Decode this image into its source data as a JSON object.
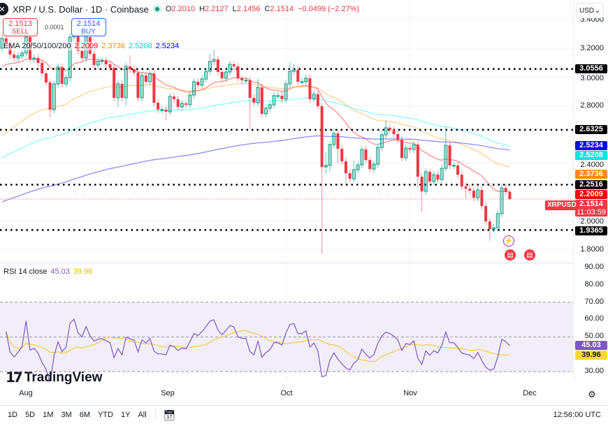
{
  "header": {
    "title": "XRP / U.S. Dollar · 1D · Coinbase",
    "o_label": "O",
    "o": "2.2010",
    "h_label": "H",
    "h": "2.2127",
    "l_label": "L",
    "l": "2.1456",
    "c_label": "C",
    "c": "2.1514",
    "change": "−0.0499 (−2.27%)"
  },
  "trade": {
    "sell_price": "2.1513",
    "sell_label": "SELL",
    "spread": "0.0001",
    "buy_price": "2.1514",
    "buy_label": "BUY"
  },
  "ema_legend": {
    "label": "EMA 20/50/100/200",
    "v20": "2.2009",
    "v50": "2.3736",
    "v100": "2.5208",
    "v200": "2.5234"
  },
  "currency": "USD",
  "price_ticks": [
    {
      "v": 3.4,
      "t": "3.4000"
    },
    {
      "v": 3.2,
      "t": "3.2000"
    },
    {
      "v": 3.0,
      "t": "3.0000"
    },
    {
      "v": 2.8,
      "t": "2.8000"
    },
    {
      "v": 2.4,
      "t": "2.4000"
    },
    {
      "v": 2.0,
      "t": "2.0000"
    },
    {
      "v": 1.8,
      "t": "1.8000"
    }
  ],
  "levels": [
    {
      "v": 3.0556,
      "t": "3.0556"
    },
    {
      "v": 2.6325,
      "t": "2.6325"
    },
    {
      "v": 2.2516,
      "t": "2.2516"
    },
    {
      "v": 1.9365,
      "t": "1.9365"
    }
  ],
  "ema_labels": [
    {
      "v": 2.5234,
      "t": "2.5234",
      "color": "#0000ff"
    },
    {
      "v": 2.5208,
      "t": "2.5208",
      "color": "#00e5e5"
    },
    {
      "v": 2.3736,
      "t": "2.3736",
      "color": "#ff8c00"
    },
    {
      "v": 2.2009,
      "t": "2.2009",
      "color": "#ff0000"
    }
  ],
  "last_price": {
    "symbol": "XRPUSD",
    "price": "2.1514",
    "countdown": "11:03:59",
    "value": 2.1514,
    "color": "#f23645"
  },
  "rsi": {
    "label": "RSI 14 close",
    "value": "45.03",
    "ma": "39.96",
    "ticks": [
      "90.00",
      "80.00",
      "70.00",
      "60.00",
      "50.00",
      "40.00",
      "30.00"
    ],
    "bands": [
      70,
      50,
      30
    ],
    "color": "#7e57c2",
    "ma_color": "#f5c518"
  },
  "time_axis": [
    {
      "label": "Aug"
    },
    {
      "label": "Sep"
    },
    {
      "label": "Oct"
    },
    {
      "label": "Nov"
    },
    {
      "label": "Dec"
    }
  ],
  "range_buttons": [
    "1D",
    "5D",
    "1M",
    "3M",
    "6M",
    "YTD",
    "1Y",
    "All"
  ],
  "clock": "12:56:00 UTC",
  "logo": "TradingView",
  "colors": {
    "up": "#089981",
    "down": "#f23645",
    "ema20": "#ff0000",
    "ema50": "#ff9800",
    "ema100": "#00ffff",
    "ema200": "#0000ff"
  },
  "chart_data": {
    "type": "candlestick",
    "symbol": "XRPUSD",
    "timeframe": "1D",
    "ylim": [
      1.75,
      3.45
    ],
    "indicators": {
      "ema": {
        "periods": [
          20,
          50,
          100,
          200
        ],
        "last": [
          2.2009,
          2.3736,
          2.5208,
          2.5234
        ]
      },
      "rsi": {
        "period": 14,
        "last": 45.03,
        "ma_last": 39.96,
        "ylim": [
          20,
          95
        ]
      }
    },
    "columns": [
      "date",
      "open",
      "high",
      "low",
      "close"
    ],
    "candles": [
      [
        "Jul 22",
        3.2,
        3.293,
        3.175,
        3.268
      ],
      [
        "Jul 23",
        3.268,
        3.293,
        3.209,
        3.234
      ],
      [
        "Jul 24",
        3.234,
        3.259,
        3.131,
        3.156
      ],
      [
        "Jul 25",
        3.156,
        3.181,
        3.107,
        3.132
      ],
      [
        "Jul 26",
        3.132,
        3.172,
        3.107,
        3.147
      ],
      [
        "Jul 27",
        3.147,
        3.191,
        3.122,
        3.166
      ],
      [
        "Jul 28",
        3.166,
        3.303,
        3.141,
        3.278
      ],
      [
        "Jul 29",
        3.278,
        3.303,
        3.097,
        3.122
      ],
      [
        "Jul 30",
        3.122,
        3.157,
        3.097,
        3.132
      ],
      [
        "Jul 31",
        3.132,
        3.157,
        3.073,
        3.098
      ],
      [
        "Aug 1",
        3.098,
        3.123,
        3.0,
        3.025
      ],
      [
        "Aug 2",
        3.025,
        3.05,
        2.937,
        2.962
      ],
      [
        "Aug 3",
        2.962,
        2.987,
        2.72,
        2.773
      ],
      [
        "Aug 4",
        2.773,
        2.977,
        2.748,
        2.952
      ],
      [
        "Aug 5",
        2.952,
        3.094,
        2.927,
        3.069
      ],
      [
        "Aug 6",
        3.069,
        3.094,
        2.927,
        2.952
      ],
      [
        "Aug 7",
        2.952,
        3.021,
        2.927,
        2.996
      ],
      [
        "Aug 8",
        2.996,
        3.303,
        2.971,
        3.278
      ],
      [
        "Aug 9",
        3.278,
        3.4,
        3.253,
        3.341
      ],
      [
        "Aug 10",
        3.341,
        3.366,
        3.156,
        3.181
      ],
      [
        "Aug 11",
        3.181,
        3.206,
        3.107,
        3.132
      ],
      [
        "Aug 12",
        3.132,
        3.303,
        3.107,
        3.278
      ],
      [
        "Aug 13",
        3.278,
        3.303,
        3.136,
        3.161
      ],
      [
        "Aug 14",
        3.161,
        3.186,
        3.058,
        3.083
      ],
      [
        "Aug 15",
        3.083,
        3.133,
        3.058,
        3.108
      ],
      [
        "Aug 16",
        3.108,
        3.138,
        3.083,
        3.113
      ],
      [
        "Aug 17",
        3.113,
        3.138,
        3.063,
        3.088
      ],
      [
        "Aug 18",
        3.088,
        3.113,
        3.039,
        3.064
      ],
      [
        "Aug 19",
        3.064,
        3.089,
        2.83,
        2.855
      ],
      [
        "Aug 20",
        2.855,
        2.977,
        2.79,
        2.952
      ],
      [
        "Aug 21",
        2.952,
        2.977,
        2.83,
        2.855
      ],
      [
        "Aug 22",
        2.855,
        3.099,
        2.8,
        3.074
      ],
      [
        "Aug 23",
        3.074,
        3.15,
        3.029,
        3.054
      ],
      [
        "Aug 24",
        3.054,
        3.079,
        3.005,
        3.03
      ],
      [
        "Aug 25",
        3.03,
        3.055,
        2.83,
        2.855
      ],
      [
        "Aug 26",
        2.855,
        3.036,
        2.83,
        3.011
      ],
      [
        "Aug 27",
        3.011,
        3.036,
        2.942,
        2.967
      ],
      [
        "Aug 28",
        2.967,
        3.05,
        2.942,
        3.025
      ],
      [
        "Aug 29",
        3.025,
        3.05,
        2.796,
        2.821
      ],
      [
        "Aug 30",
        2.821,
        2.846,
        2.748,
        2.773
      ],
      [
        "Aug 31",
        2.773,
        2.798,
        2.748,
        2.773
      ],
      [
        "Sep 1",
        2.773,
        2.798,
        2.7,
        2.758
      ],
      [
        "Sep 2",
        2.758,
        2.89,
        2.733,
        2.865
      ],
      [
        "Sep 3",
        2.865,
        2.89,
        2.821,
        2.846
      ],
      [
        "Sep 4",
        2.846,
        2.871,
        2.767,
        2.792
      ],
      [
        "Sep 5",
        2.792,
        2.842,
        2.767,
        2.817
      ],
      [
        "Sep 6",
        2.817,
        2.842,
        2.782,
        2.807
      ],
      [
        "Sep 7",
        2.807,
        2.9,
        2.782,
        2.875
      ],
      [
        "Sep 8",
        2.875,
        2.992,
        2.85,
        2.967
      ],
      [
        "Sep 9",
        2.967,
        2.992,
        2.918,
        2.943
      ],
      [
        "Sep 10",
        2.943,
        3.011,
        2.918,
        2.986
      ],
      [
        "Sep 11",
        2.986,
        3.065,
        2.961,
        3.04
      ],
      [
        "Sep 12",
        3.04,
        3.16,
        3.015,
        3.108
      ],
      [
        "Sep 13",
        3.108,
        3.19,
        3.083,
        3.122
      ],
      [
        "Sep 14",
        3.122,
        3.147,
        3.01,
        3.035
      ],
      [
        "Sep 15",
        3.035,
        3.06,
        2.966,
        2.991
      ],
      [
        "Sep 16",
        2.991,
        3.06,
        2.966,
        3.035
      ],
      [
        "Sep 17",
        3.035,
        3.113,
        3.01,
        3.088
      ],
      [
        "Sep 18",
        3.088,
        3.113,
        3.049,
        3.074
      ],
      [
        "Sep 19",
        3.074,
        3.099,
        2.966,
        2.991
      ],
      [
        "Sep 20",
        2.991,
        3.016,
        2.952,
        2.977
      ],
      [
        "Sep 21",
        2.977,
        3.002,
        2.952,
        2.977
      ],
      [
        "Sep 22",
        2.977,
        3.002,
        2.64,
        2.855
      ],
      [
        "Sep 23",
        2.855,
        2.88,
        2.796,
        2.821
      ],
      [
        "Sep 24",
        2.821,
        2.99,
        2.796,
        2.928
      ],
      [
        "Sep 25",
        2.928,
        2.953,
        2.719,
        2.744
      ],
      [
        "Sep 26",
        2.744,
        2.808,
        2.719,
        2.783
      ],
      [
        "Sep 27",
        2.783,
        2.832,
        2.758,
        2.807
      ],
      [
        "Sep 28",
        2.807,
        2.895,
        2.782,
        2.87
      ],
      [
        "Sep 29",
        2.87,
        2.895,
        2.845,
        2.87
      ],
      [
        "Sep 30",
        2.87,
        2.895,
        2.821,
        2.846
      ],
      [
        "Oct 1",
        2.846,
        2.977,
        2.821,
        2.952
      ],
      [
        "Oct 2",
        2.952,
        3.1,
        2.927,
        3.04
      ],
      [
        "Oct 3",
        3.04,
        3.09,
        3.015,
        3.05
      ],
      [
        "Oct 4",
        3.05,
        3.075,
        2.942,
        2.967
      ],
      [
        "Oct 5",
        2.967,
        2.992,
        2.942,
        2.967
      ],
      [
        "Oct 6",
        2.967,
        3.016,
        2.942,
        2.991
      ],
      [
        "Oct 7",
        2.991,
        3.016,
        2.821,
        2.846
      ],
      [
        "Oct 8",
        2.846,
        2.905,
        2.821,
        2.88
      ],
      [
        "Oct 9",
        2.88,
        2.905,
        2.772,
        2.797
      ],
      [
        "Oct 10",
        2.797,
        2.822,
        1.773,
        2.375
      ],
      [
        "Oct 11",
        2.375,
        2.48,
        2.33,
        2.385
      ],
      [
        "Oct 12",
        2.385,
        2.555,
        2.34,
        2.53
      ],
      [
        "Oct 13",
        2.53,
        2.64,
        2.505,
        2.608
      ],
      [
        "Oct 14",
        2.608,
        2.633,
        2.4,
        2.501
      ],
      [
        "Oct 15",
        2.501,
        2.526,
        2.389,
        2.414
      ],
      [
        "Oct 16",
        2.414,
        2.439,
        2.25,
        2.331
      ],
      [
        "Oct 17",
        2.331,
        2.356,
        2.267,
        2.292
      ],
      [
        "Oct 18",
        2.292,
        2.42,
        2.267,
        2.355
      ],
      [
        "Oct 19",
        2.355,
        2.414,
        2.33,
        2.389
      ],
      [
        "Oct 20",
        2.389,
        2.521,
        2.364,
        2.496
      ],
      [
        "Oct 21",
        2.496,
        2.521,
        2.398,
        2.423
      ],
      [
        "Oct 22",
        2.423,
        2.448,
        2.335,
        2.36
      ],
      [
        "Oct 23",
        2.36,
        2.419,
        2.335,
        2.394
      ],
      [
        "Oct 24",
        2.394,
        2.536,
        2.369,
        2.511
      ],
      [
        "Oct 25",
        2.511,
        2.623,
        2.486,
        2.598
      ],
      [
        "Oct 26",
        2.598,
        2.7,
        2.573,
        2.647
      ],
      [
        "Oct 27",
        2.647,
        2.672,
        2.607,
        2.632
      ],
      [
        "Oct 28",
        2.632,
        2.657,
        2.578,
        2.603
      ],
      [
        "Oct 29",
        2.603,
        2.628,
        2.539,
        2.564
      ],
      [
        "Oct 30",
        2.564,
        2.589,
        2.413,
        2.438
      ],
      [
        "Oct 31",
        2.438,
        2.531,
        2.413,
        2.506
      ],
      [
        "Nov 1",
        2.506,
        2.531,
        2.471,
        2.496
      ],
      [
        "Nov 2",
        2.496,
        2.555,
        2.471,
        2.53
      ],
      [
        "Nov 3",
        2.53,
        2.555,
        2.23,
        2.307
      ],
      [
        "Nov 4",
        2.307,
        2.332,
        2.06,
        2.205
      ],
      [
        "Nov 5",
        2.205,
        2.366,
        2.18,
        2.341
      ],
      [
        "Nov 6",
        2.341,
        2.366,
        2.248,
        2.273
      ],
      [
        "Nov 7",
        2.273,
        2.346,
        2.248,
        2.321
      ],
      [
        "Nov 8",
        2.321,
        2.346,
        2.262,
        2.287
      ],
      [
        "Nov 9",
        2.287,
        2.39,
        2.262,
        2.365
      ],
      [
        "Nov 10",
        2.365,
        2.66,
        2.34,
        2.525
      ],
      [
        "Nov 11",
        2.525,
        2.55,
        2.36,
        2.385
      ],
      [
        "Nov 12",
        2.385,
        2.41,
        2.36,
        2.385
      ],
      [
        "Nov 13",
        2.385,
        2.41,
        2.296,
        2.321
      ],
      [
        "Nov 14",
        2.321,
        2.346,
        2.214,
        2.239
      ],
      [
        "Nov 15",
        2.239,
        2.264,
        2.15,
        2.224
      ],
      [
        "Nov 16",
        2.224,
        2.249,
        2.185,
        2.21
      ],
      [
        "Nov 17",
        2.21,
        2.235,
        2.136,
        2.161
      ],
      [
        "Nov 18",
        2.161,
        2.24,
        2.136,
        2.215
      ],
      [
        "Nov 19",
        2.215,
        2.24,
        2.078,
        2.103
      ],
      [
        "Nov 20",
        2.103,
        2.128,
        1.971,
        1.996
      ],
      [
        "Nov 21",
        1.996,
        2.021,
        1.86,
        1.943
      ],
      [
        "Nov 22",
        1.943,
        1.977,
        1.918,
        1.952
      ],
      [
        "Nov 23",
        1.952,
        2.075,
        1.927,
        2.05
      ],
      [
        "Nov 24",
        2.05,
        2.26,
        2.025,
        2.229
      ],
      [
        "Nov 25",
        2.229,
        2.254,
        2.176,
        2.201
      ],
      [
        "Nov 26",
        2.201,
        2.2127,
        2.1456,
        2.1514
      ]
    ]
  }
}
